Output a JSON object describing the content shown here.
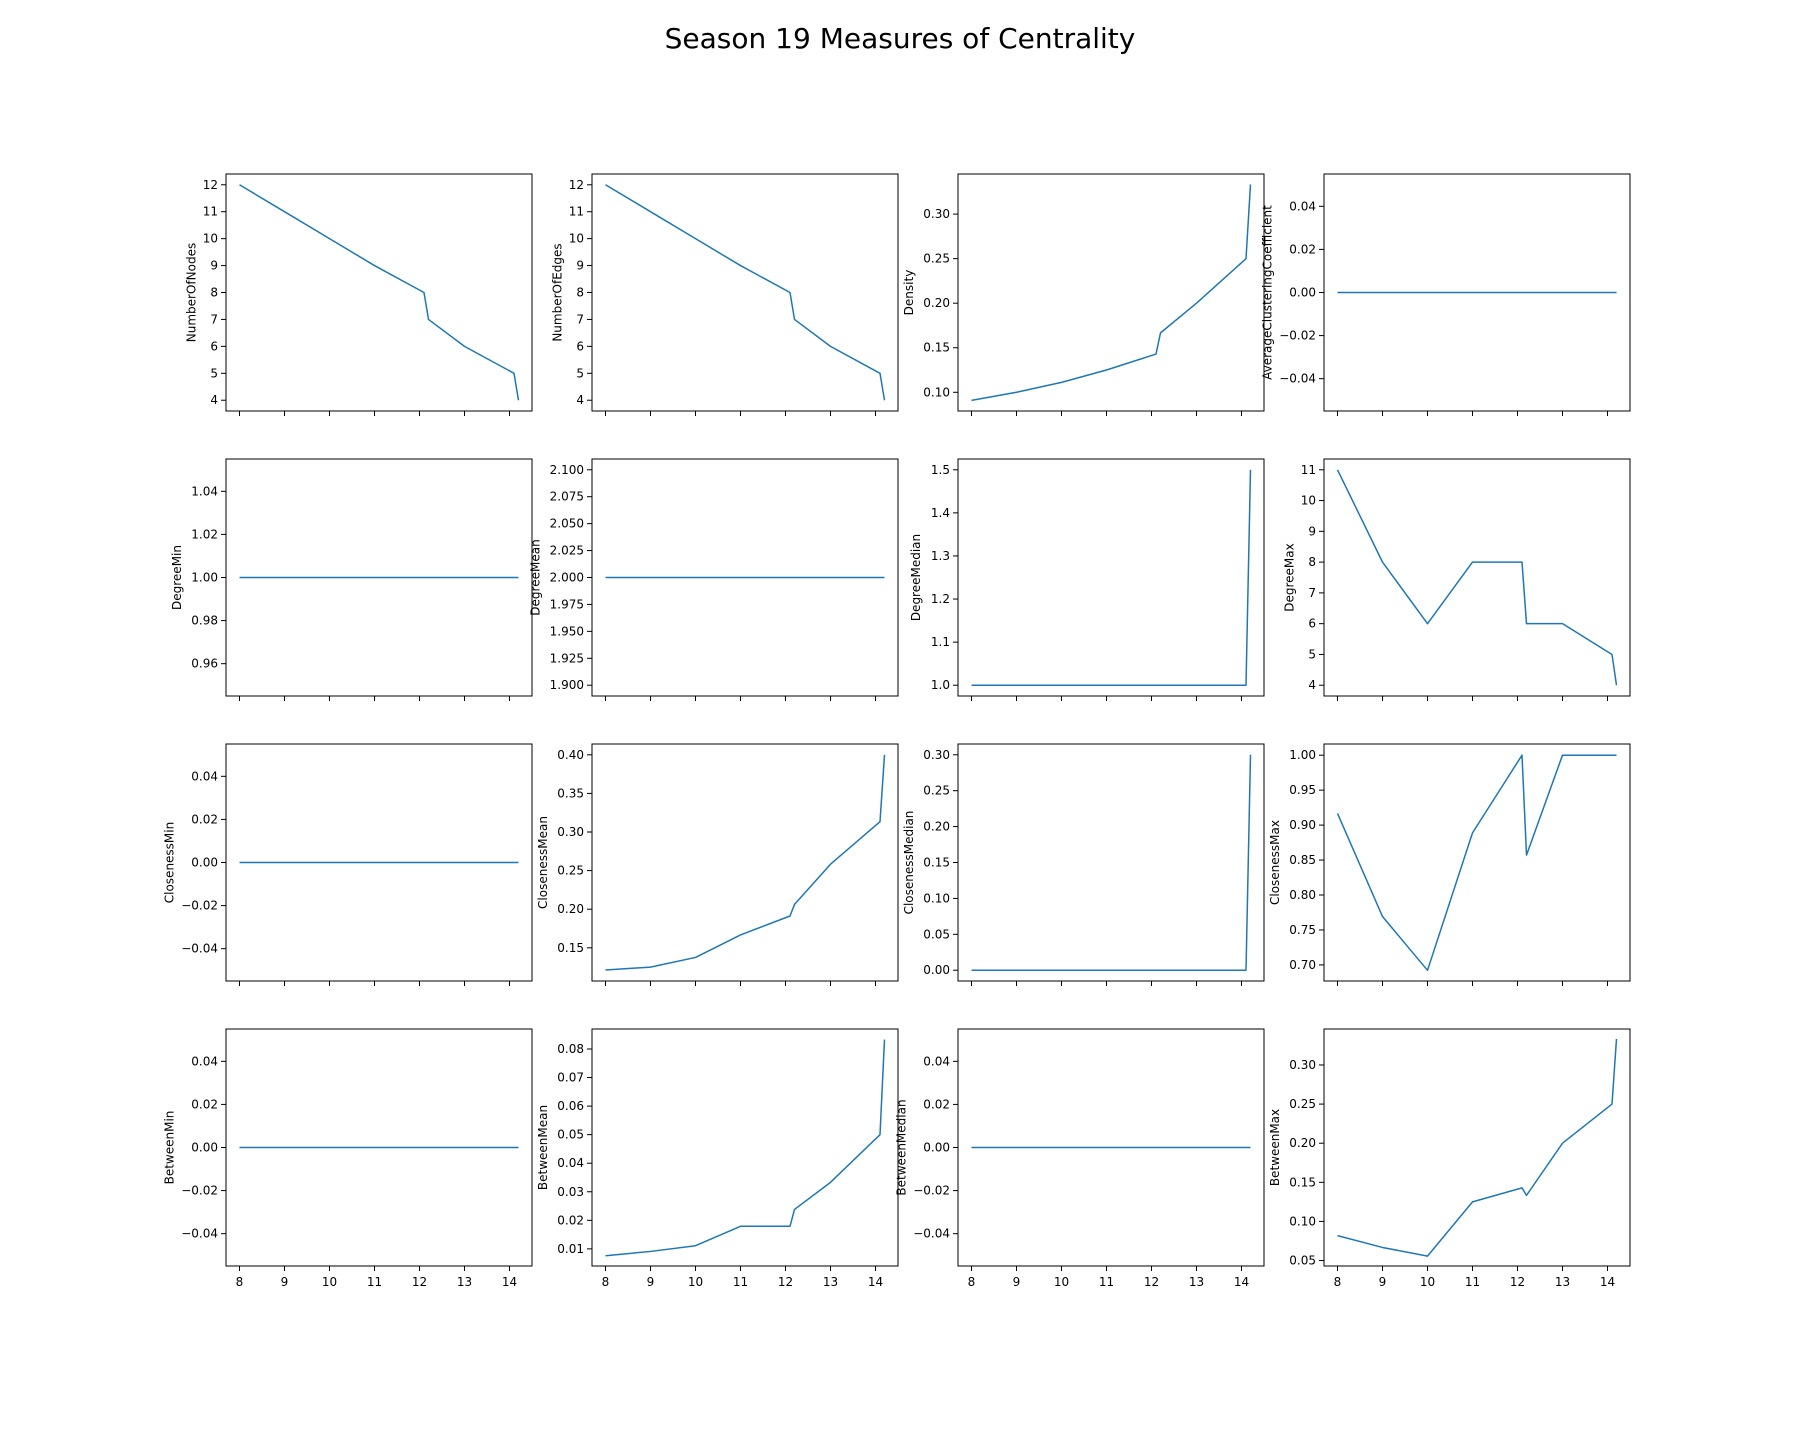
{
  "figure": {
    "title": "Season 19 Measures of Centrality",
    "line_color": "#1f77b4"
  },
  "chart_data": [
    {
      "type": "line",
      "ylabel": "NumberOfNodes",
      "x": [
        8,
        9,
        10,
        11,
        12.1,
        12.2,
        13,
        14.1,
        14.2
      ],
      "y": [
        12,
        11,
        10,
        9,
        8,
        7,
        6,
        5,
        4
      ],
      "xlim": [
        7.7,
        14.5
      ],
      "xticks": [
        8,
        9,
        10,
        11,
        12,
        13,
        14
      ],
      "ylim": [
        3.6,
        12.4
      ],
      "yticks": [
        4,
        5,
        6,
        7,
        8,
        9,
        10,
        11,
        12
      ],
      "ytick_labels": [
        "4",
        "5",
        "6",
        "7",
        "8",
        "9",
        "10",
        "11",
        "12"
      ]
    },
    {
      "type": "line",
      "ylabel": "NumberOfEdges",
      "x": [
        8,
        9,
        10,
        11,
        12.1,
        12.2,
        13,
        14.1,
        14.2
      ],
      "y": [
        12,
        11,
        10,
        9,
        8,
        7,
        6,
        5,
        4
      ],
      "xlim": [
        7.7,
        14.5
      ],
      "xticks": [
        8,
        9,
        10,
        11,
        12,
        13,
        14
      ],
      "ylim": [
        3.6,
        12.4
      ],
      "yticks": [
        4,
        5,
        6,
        7,
        8,
        9,
        10,
        11,
        12
      ],
      "ytick_labels": [
        "4",
        "5",
        "6",
        "7",
        "8",
        "9",
        "10",
        "11",
        "12"
      ]
    },
    {
      "type": "line",
      "ylabel": "Density",
      "x": [
        8,
        9,
        10,
        11,
        12.1,
        12.2,
        13,
        14.1,
        14.2
      ],
      "y": [
        0.0909,
        0.1,
        0.1111,
        0.125,
        0.1429,
        0.1667,
        0.2,
        0.25,
        0.3333
      ],
      "xlim": [
        7.7,
        14.5
      ],
      "xticks": [
        8,
        9,
        10,
        11,
        12,
        13,
        14
      ],
      "ylim": [
        0.079,
        0.345
      ],
      "yticks": [
        0.1,
        0.15,
        0.2,
        0.25,
        0.3
      ],
      "ytick_labels": [
        "0.10",
        "0.15",
        "0.20",
        "0.25",
        "0.30"
      ]
    },
    {
      "type": "line",
      "ylabel": "AverageClusteringCoefficient",
      "x": [
        8,
        14.2
      ],
      "y": [
        0,
        0
      ],
      "xlim": [
        7.7,
        14.5
      ],
      "xticks": [
        8,
        9,
        10,
        11,
        12,
        13,
        14
      ],
      "ylim": [
        -0.055,
        0.055
      ],
      "yticks": [
        -0.04,
        -0.02,
        0,
        0.02,
        0.04
      ],
      "ytick_labels": [
        "−0.04",
        "−0.02",
        "0.00",
        "0.02",
        "0.04"
      ]
    },
    {
      "type": "line",
      "ylabel": "DegreeMin",
      "x": [
        8,
        14.2
      ],
      "y": [
        1,
        1
      ],
      "xlim": [
        7.7,
        14.5
      ],
      "xticks": [
        8,
        9,
        10,
        11,
        12,
        13,
        14
      ],
      "ylim": [
        0.945,
        1.055
      ],
      "yticks": [
        0.96,
        0.98,
        1,
        1.02,
        1.04
      ],
      "ytick_labels": [
        "0.96",
        "0.98",
        "1.00",
        "1.02",
        "1.04"
      ]
    },
    {
      "type": "line",
      "ylabel": "DegreeMean",
      "x": [
        8,
        14.2
      ],
      "y": [
        2,
        2
      ],
      "xlim": [
        7.7,
        14.5
      ],
      "xticks": [
        8,
        9,
        10,
        11,
        12,
        13,
        14
      ],
      "ylim": [
        1.89,
        2.11
      ],
      "yticks": [
        1.9,
        1.925,
        1.95,
        1.975,
        2,
        2.025,
        2.05,
        2.075,
        2.1
      ],
      "ytick_labels": [
        "1.900",
        "1.925",
        "1.950",
        "1.975",
        "2.000",
        "2.025",
        "2.050",
        "2.075",
        "2.100"
      ]
    },
    {
      "type": "line",
      "ylabel": "DegreeMedian",
      "x": [
        8,
        12,
        14.1,
        14.2
      ],
      "y": [
        1,
        1,
        1,
        1.5
      ],
      "xlim": [
        7.7,
        14.5
      ],
      "xticks": [
        8,
        9,
        10,
        11,
        12,
        13,
        14
      ],
      "ylim": [
        0.975,
        1.525
      ],
      "yticks": [
        1,
        1.1,
        1.2,
        1.3,
        1.4,
        1.5
      ],
      "ytick_labels": [
        "1.0",
        "1.1",
        "1.2",
        "1.3",
        "1.4",
        "1.5"
      ]
    },
    {
      "type": "line",
      "ylabel": "DegreeMax",
      "x": [
        8,
        9,
        10,
        11,
        12.1,
        12.2,
        13,
        14.1,
        14.2
      ],
      "y": [
        11,
        8,
        6,
        8,
        8,
        6,
        6,
        5,
        4
      ],
      "xlim": [
        7.7,
        14.5
      ],
      "xticks": [
        8,
        9,
        10,
        11,
        12,
        13,
        14
      ],
      "ylim": [
        3.65,
        11.35
      ],
      "yticks": [
        4,
        5,
        6,
        7,
        8,
        9,
        10,
        11
      ],
      "ytick_labels": [
        "4",
        "5",
        "6",
        "7",
        "8",
        "9",
        "10",
        "11"
      ]
    },
    {
      "type": "line",
      "ylabel": "ClosenessMin",
      "x": [
        8,
        14.2
      ],
      "y": [
        0,
        0
      ],
      "xlim": [
        7.7,
        14.5
      ],
      "xticks": [
        8,
        9,
        10,
        11,
        12,
        13,
        14
      ],
      "ylim": [
        -0.055,
        0.055
      ],
      "yticks": [
        -0.04,
        -0.02,
        0,
        0.02,
        0.04
      ],
      "ytick_labels": [
        "−0.04",
        "−0.02",
        "0.00",
        "0.02",
        "0.04"
      ]
    },
    {
      "type": "line",
      "ylabel": "ClosenessMean",
      "x": [
        8,
        9,
        10,
        11,
        12.1,
        12.2,
        13,
        14.1,
        14.2
      ],
      "y": [
        0.1212,
        0.125,
        0.1375,
        0.1667,
        0.1912,
        0.2062,
        0.2583,
        0.3133,
        0.4
      ],
      "xlim": [
        7.7,
        14.5
      ],
      "xticks": [
        8,
        9,
        10,
        11,
        12,
        13,
        14
      ],
      "ylim": [
        0.107,
        0.414
      ],
      "yticks": [
        0.15,
        0.2,
        0.25,
        0.3,
        0.35,
        0.4
      ],
      "ytick_labels": [
        "0.15",
        "0.20",
        "0.25",
        "0.30",
        "0.35",
        "0.40"
      ]
    },
    {
      "type": "line",
      "ylabel": "ClosenessMedian",
      "x": [
        8,
        12,
        14.1,
        14.2
      ],
      "y": [
        0,
        0,
        0,
        0.3
      ],
      "xlim": [
        7.7,
        14.5
      ],
      "xticks": [
        8,
        9,
        10,
        11,
        12,
        13,
        14
      ],
      "ylim": [
        -0.015,
        0.315
      ],
      "yticks": [
        0,
        0.05,
        0.1,
        0.15,
        0.2,
        0.25,
        0.3
      ],
      "ytick_labels": [
        "0.00",
        "0.05",
        "0.10",
        "0.15",
        "0.20",
        "0.25",
        "0.30"
      ]
    },
    {
      "type": "line",
      "ylabel": "ClosenessMax",
      "x": [
        8,
        9,
        10,
        11,
        12.1,
        12.2,
        13,
        14.1,
        14.2
      ],
      "y": [
        0.9167,
        0.7692,
        0.6923,
        0.8889,
        1,
        0.8571,
        1,
        1,
        1
      ],
      "xlim": [
        7.7,
        14.5
      ],
      "xticks": [
        8,
        9,
        10,
        11,
        12,
        13,
        14
      ],
      "ylim": [
        0.677,
        1.016
      ],
      "yticks": [
        0.7,
        0.75,
        0.8,
        0.85,
        0.9,
        0.95,
        1
      ],
      "ytick_labels": [
        "0.70",
        "0.75",
        "0.80",
        "0.85",
        "0.90",
        "0.95",
        "1.00"
      ]
    },
    {
      "type": "line",
      "ylabel": "BetweenMin",
      "x": [
        8,
        14.2
      ],
      "y": [
        0,
        0
      ],
      "xlim": [
        7.7,
        14.5
      ],
      "xticks": [
        8,
        9,
        10,
        11,
        12,
        13,
        14
      ],
      "ylim": [
        -0.055,
        0.055
      ],
      "yticks": [
        -0.04,
        -0.02,
        0,
        0.02,
        0.04
      ],
      "ytick_labels": [
        "−0.04",
        "−0.02",
        "0.00",
        "0.02",
        "0.04"
      ]
    },
    {
      "type": "line",
      "ylabel": "BetweenMean",
      "x": [
        8,
        9,
        10,
        11,
        12.1,
        12.2,
        13,
        14.1,
        14.2
      ],
      "y": [
        0.0076,
        0.0091,
        0.0111,
        0.0179,
        0.0179,
        0.0238,
        0.0333,
        0.05,
        0.0833
      ],
      "xlim": [
        7.7,
        14.5
      ],
      "xticks": [
        8,
        9,
        10,
        11,
        12,
        13,
        14
      ],
      "ylim": [
        0.004,
        0.087
      ],
      "yticks": [
        0.01,
        0.02,
        0.03,
        0.04,
        0.05,
        0.06,
        0.07,
        0.08
      ],
      "ytick_labels": [
        "0.01",
        "0.02",
        "0.03",
        "0.04",
        "0.05",
        "0.06",
        "0.07",
        "0.08"
      ]
    },
    {
      "type": "line",
      "ylabel": "BetweenMedian",
      "x": [
        8,
        14.2
      ],
      "y": [
        0,
        0
      ],
      "xlim": [
        7.7,
        14.5
      ],
      "xticks": [
        8,
        9,
        10,
        11,
        12,
        13,
        14
      ],
      "ylim": [
        -0.055,
        0.055
      ],
      "yticks": [
        -0.04,
        -0.02,
        0,
        0.02,
        0.04
      ],
      "ytick_labels": [
        "−0.04",
        "−0.02",
        "0.00",
        "0.02",
        "0.04"
      ]
    },
    {
      "type": "line",
      "ylabel": "BetweenMax",
      "x": [
        8,
        9,
        10,
        11,
        12.1,
        12.2,
        13,
        14.1,
        14.2
      ],
      "y": [
        0.0818,
        0.0667,
        0.0556,
        0.125,
        0.1429,
        0.1333,
        0.2,
        0.25,
        0.3333
      ],
      "xlim": [
        7.7,
        14.5
      ],
      "xticks": [
        8,
        9,
        10,
        11,
        12,
        13,
        14
      ],
      "ylim": [
        0.043,
        0.346
      ],
      "yticks": [
        0.05,
        0.1,
        0.15,
        0.2,
        0.25,
        0.3
      ],
      "ytick_labels": [
        "0.05",
        "0.10",
        "0.15",
        "0.20",
        "0.25",
        "0.30"
      ]
    }
  ]
}
